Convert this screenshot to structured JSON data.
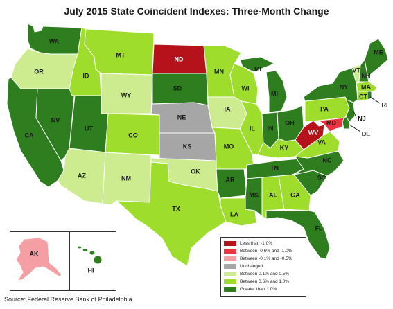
{
  "title": "July 2015 State Coincident Indexes: Three-Month Change",
  "source": "Source: Federal Reserve Bank of Philadelphia",
  "colors": {
    "lt_neg1": "#b5121b",
    "neg06_neg1": "#ee3340",
    "neg01_neg05": "#f59ea3",
    "unchanged": "#a6a6a6",
    "p01_p05": "#ccec8f",
    "p06_p10": "#9fdd2d",
    "gt_1": "#2e7d1f"
  },
  "legend": [
    {
      "key": "lt_neg1",
      "label": "Less than -1.0%"
    },
    {
      "key": "neg06_neg1",
      "label": "Between -0.6% and -1.0%"
    },
    {
      "key": "neg01_neg05",
      "label": "Between -0.1% and -0.5%"
    },
    {
      "key": "unchanged",
      "label": "Unchanged"
    },
    {
      "key": "p01_p05",
      "label": "Between 0.1% and 0.5%"
    },
    {
      "key": "p06_p10",
      "label": "Between 0.6% and 1.0%"
    },
    {
      "key": "gt_1",
      "label": "Greater than 1.0%"
    }
  ],
  "states": {
    "WA": "gt_1",
    "OR": "p01_p05",
    "CA": "gt_1",
    "NV": "gt_1",
    "ID": "p06_p10",
    "MT": "p06_p10",
    "WY": "p01_p05",
    "UT": "gt_1",
    "AZ": "p01_p05",
    "CO": "p06_p10",
    "NM": "p01_p05",
    "ND": "lt_neg1",
    "SD": "gt_1",
    "NE": "unchanged",
    "KS": "unchanged",
    "OK": "p01_p05",
    "TX": "p06_p10",
    "MN": "p06_p10",
    "IA": "p01_p05",
    "MO": "p06_p10",
    "AR": "gt_1",
    "LA": "p06_p10",
    "WI": "p06_p10",
    "IL": "p06_p10",
    "MI": "gt_1",
    "IN": "gt_1",
    "OH": "gt_1",
    "KY": "p06_p10",
    "TN": "gt_1",
    "MS": "gt_1",
    "AL": "p06_p10",
    "GA": "p06_p10",
    "FL": "gt_1",
    "SC": "gt_1",
    "NC": "gt_1",
    "VA": "p06_p10",
    "WV": "lt_neg1",
    "MD": "neg06_neg1",
    "DE": "gt_1",
    "NJ": "gt_1",
    "PA": "p06_p10",
    "NY": "gt_1",
    "VT": "p01_p05",
    "NH": "gt_1",
    "ME": "gt_1",
    "MA": "p06_p10",
    "CT": "p06_p10",
    "RI": "gt_1",
    "AK": "neg01_neg05",
    "HI": "gt_1"
  },
  "labels": {
    "WA": "WA",
    "OR": "OR",
    "CA": "CA",
    "NV": "NV",
    "ID": "ID",
    "MT": "MT",
    "WY": "WY",
    "UT": "UT",
    "AZ": "AZ",
    "CO": "CO",
    "NM": "NM",
    "ND": "ND",
    "SD": "SD",
    "NE": "NE",
    "KS": "KS",
    "OK": "OK",
    "TX": "TX",
    "MN": "MN",
    "IA": "IA",
    "MO": "MO",
    "AR": "AR",
    "LA": "LA",
    "WI": "WI",
    "IL": "IL",
    "MI": "MI",
    "IN": "IN",
    "OH": "OH",
    "KY": "KY",
    "TN": "TN",
    "MS": "MS",
    "AL": "AL",
    "GA": "GA",
    "FL": "FL",
    "SC": "SC",
    "NC": "NC",
    "VA": "VA",
    "WV": "WV",
    "MD": "MD",
    "DE": "DE",
    "NJ": "NJ",
    "PA": "PA",
    "NY": "NY",
    "VT": "VT",
    "NH": "NH",
    "ME": "ME",
    "MA": "MA",
    "CT": "CT",
    "RI": "RI",
    "AK": "AK",
    "HI": "HI"
  }
}
